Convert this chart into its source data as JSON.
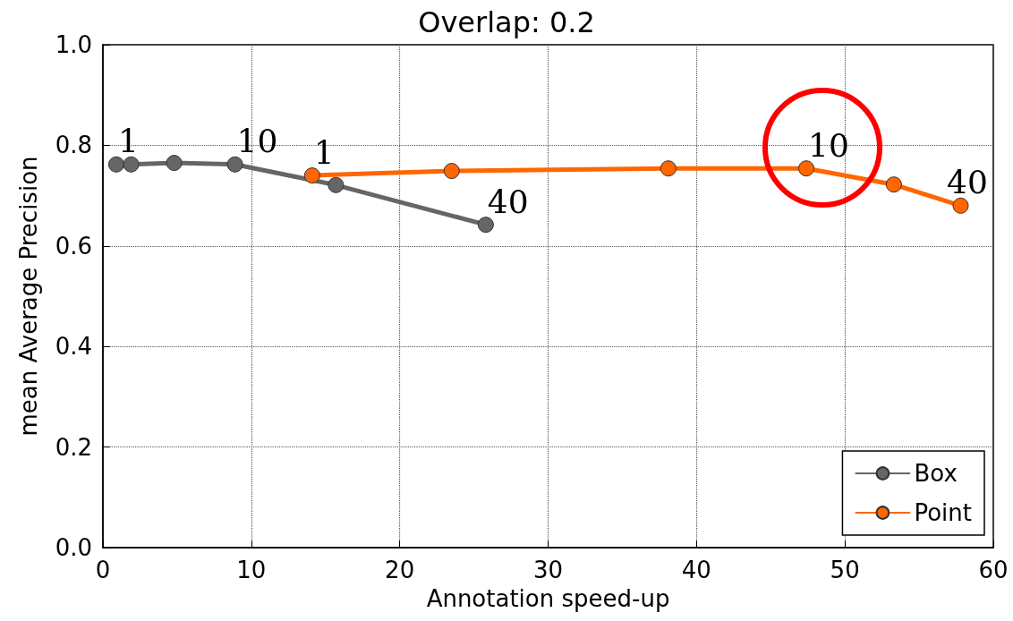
{
  "chart_data": {
    "type": "line",
    "title": "Overlap: 0.2",
    "xlabel": "Annotation speed-up",
    "ylabel": "mean Average Precision",
    "xlim": [
      0,
      60
    ],
    "xticks": [
      0,
      10,
      20,
      30,
      40,
      50,
      60
    ],
    "ylim": [
      0,
      1
    ],
    "yticks": [
      {
        "value": 0,
        "label": "0.0"
      },
      {
        "value": 0.2,
        "label": "0.2"
      },
      {
        "value": 0.4,
        "label": "0.4"
      },
      {
        "value": 0.6,
        "label": "0.6"
      },
      {
        "value": 0.8,
        "label": "0.8"
      },
      {
        "value": 1,
        "label": "1.0"
      }
    ],
    "grid": true,
    "legend": "bottom right",
    "marker": "circle",
    "line_style": "solid",
    "series": [
      {
        "name": "Box",
        "color": "#666666",
        "x": [
          0.9,
          1.9,
          4.8,
          8.9,
          15.7,
          25.8
        ],
        "values": [
          0.762,
          0.762,
          0.765,
          0.762,
          0.721,
          0.642
        ]
      },
      {
        "name": "Point",
        "color": "#ff6600",
        "x": [
          14.1,
          23.5,
          38.1,
          47.4,
          53.3,
          57.8
        ],
        "values": [
          0.74,
          0.749,
          0.754,
          0.754,
          0.722,
          0.68
        ]
      }
    ],
    "annotations": [
      {
        "text": "1",
        "x": 0.9,
        "y": 0.762
      },
      {
        "text": "10",
        "x": 8.9,
        "y": 0.762
      },
      {
        "text": "40",
        "x": 25.8,
        "y": 0.642
      },
      {
        "text": "1",
        "x": 14.1,
        "y": 0.74
      },
      {
        "text": "10",
        "x": 47.4,
        "y": 0.754
      },
      {
        "text": "40",
        "x": 57.8,
        "y": 0.68
      }
    ]
  }
}
